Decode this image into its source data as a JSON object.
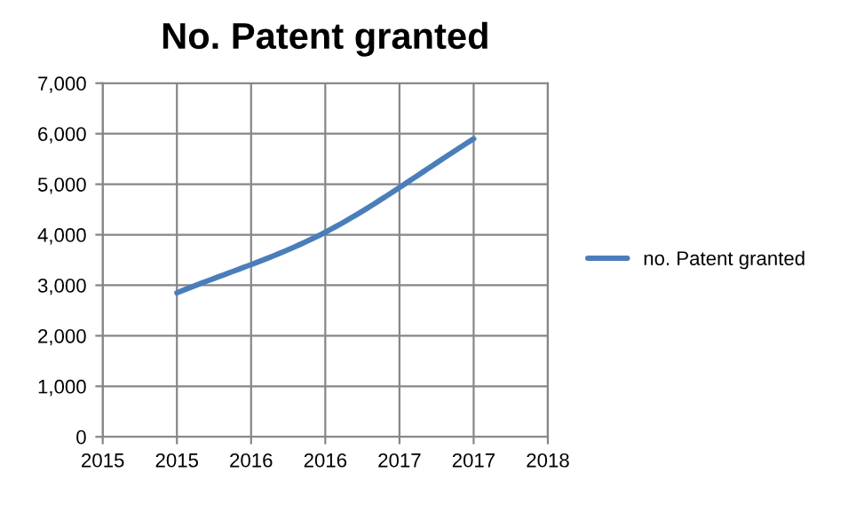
{
  "chart_data": {
    "type": "line",
    "title": "No. Patent granted",
    "x": [
      2015,
      2016,
      2017
    ],
    "series": [
      {
        "name": "no. Patent granted",
        "color": "#4a7ebb",
        "values": [
          2850,
          4050,
          5900
        ]
      }
    ],
    "xlim": [
      2014.5,
      2017.5
    ],
    "xticks": [
      {
        "value": 2014.5,
        "label": "2015"
      },
      {
        "value": 2015,
        "label": "2015"
      },
      {
        "value": 2015.5,
        "label": "2016"
      },
      {
        "value": 2016,
        "label": "2016"
      },
      {
        "value": 2016.5,
        "label": "2017"
      },
      {
        "value": 2017,
        "label": "2017"
      },
      {
        "value": 2017.5,
        "label": "2018"
      }
    ],
    "ylim": [
      0,
      7000
    ],
    "yticks": [
      {
        "value": 0,
        "label": "0"
      },
      {
        "value": 1000,
        "label": "1,000"
      },
      {
        "value": 2000,
        "label": "2,000"
      },
      {
        "value": 3000,
        "label": "3,000"
      },
      {
        "value": 4000,
        "label": "4,000"
      },
      {
        "value": 5000,
        "label": "5,000"
      },
      {
        "value": 6000,
        "label": "6,000"
      },
      {
        "value": 7000,
        "label": "7,000"
      }
    ],
    "grid": true,
    "legend": "right",
    "marker": "none",
    "line_style": "solid"
  }
}
